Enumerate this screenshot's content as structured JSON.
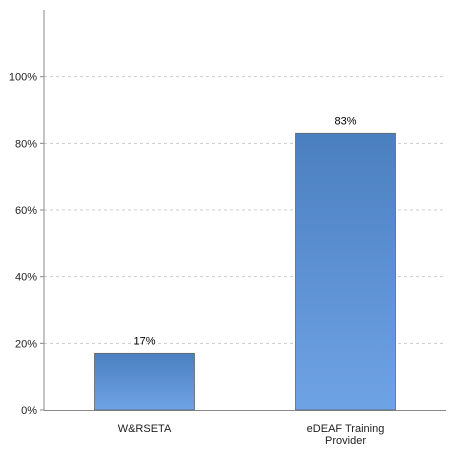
{
  "chart_data": {
    "type": "bar",
    "categories": [
      "W&RSETA",
      "eDEAF Training Provider"
    ],
    "category_lines": [
      [
        "W&RSETA"
      ],
      [
        "eDEAF Training",
        "Provider"
      ]
    ],
    "values": [
      17,
      83
    ],
    "data_labels": [
      "17%",
      "83%"
    ],
    "ylim": [
      0,
      120
    ],
    "yticks": [
      0,
      20,
      40,
      60,
      80,
      100
    ],
    "ytick_labels": [
      "0%",
      "20%",
      "40%",
      "60%",
      "80%",
      "100%"
    ],
    "grid": true,
    "title": "",
    "xlabel": "",
    "ylabel": "",
    "colors": {
      "bar_top": "#4a7fc0",
      "bar_bottom": "#6ea3e6",
      "bar_stroke": "#666666",
      "grid": "#cccccc",
      "axis": "#888888",
      "text": "#222222"
    }
  }
}
